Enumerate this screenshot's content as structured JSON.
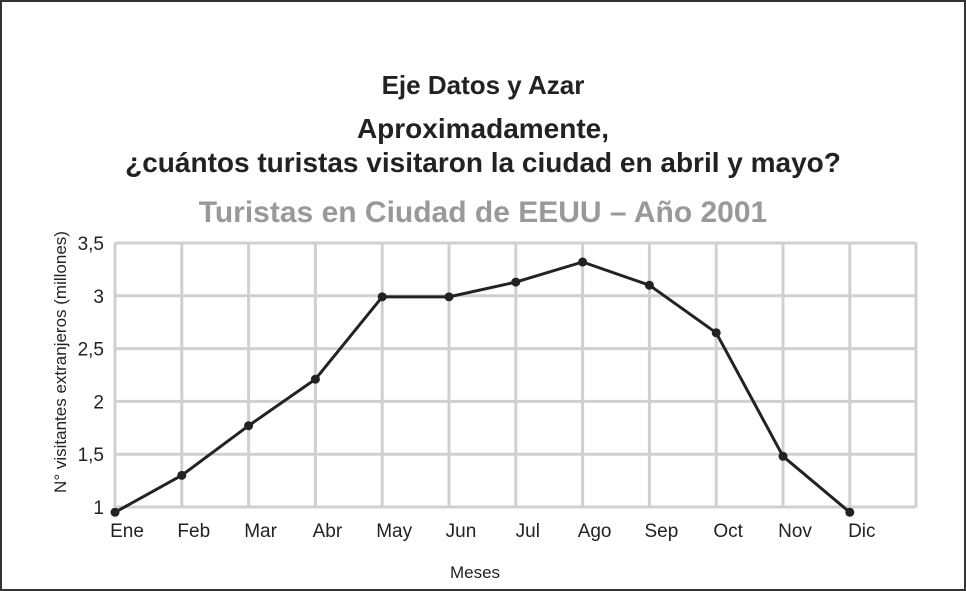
{
  "header": {
    "line1": "Eje Datos y Azar",
    "line2": "Aproximadamente,",
    "line3": "¿cuántos turistas visitaron la ciudad en abril y mayo?"
  },
  "chart_data": {
    "type": "line",
    "title": "Turistas en Ciudad de EEUU – Año 2001",
    "xlabel": "Meses",
    "ylabel": "N° visitantes extranjeros (millones)",
    "categories": [
      "Ene",
      "Feb",
      "Mar",
      "Abr",
      "May",
      "Jun",
      "Jul",
      "Ago",
      "Sep",
      "Oct",
      "Nov",
      "Dic"
    ],
    "series": [
      {
        "values": [
          0.95,
          1.3,
          1.77,
          2.21,
          2.99,
          2.99,
          3.13,
          3.32,
          3.1,
          2.65,
          1.48,
          0.95
        ]
      }
    ],
    "ylim": [
      1,
      3.5
    ],
    "yticks": [
      1,
      1.5,
      2,
      2.5,
      3,
      3.5
    ],
    "ytick_labels": [
      "1",
      "1,5",
      "2",
      "2,5",
      "3",
      "3,5"
    ],
    "grid": true,
    "colors": {
      "line": "#222222",
      "grid": "#d0d0d0",
      "title": "#999999"
    }
  }
}
